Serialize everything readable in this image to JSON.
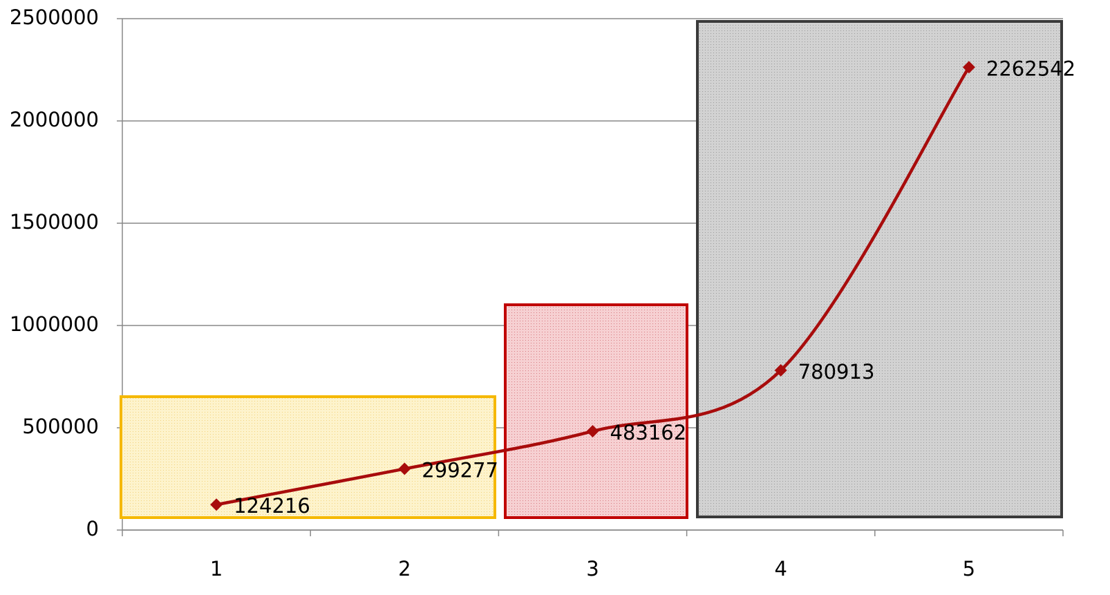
{
  "chart_data": {
    "type": "line",
    "categories": [
      "1",
      "2",
      "3",
      "4",
      "5"
    ],
    "series": [
      {
        "name": null,
        "color": "#a80c0c",
        "values": [
          124216,
          299277,
          483162,
          780913,
          2262542
        ]
      }
    ],
    "ylim": [
      0,
      2500000
    ],
    "yticks": [
      0,
      500000,
      1000000,
      1500000,
      2000000,
      2500000
    ],
    "grid": true,
    "smooth": true,
    "data_labels": true
  }
}
